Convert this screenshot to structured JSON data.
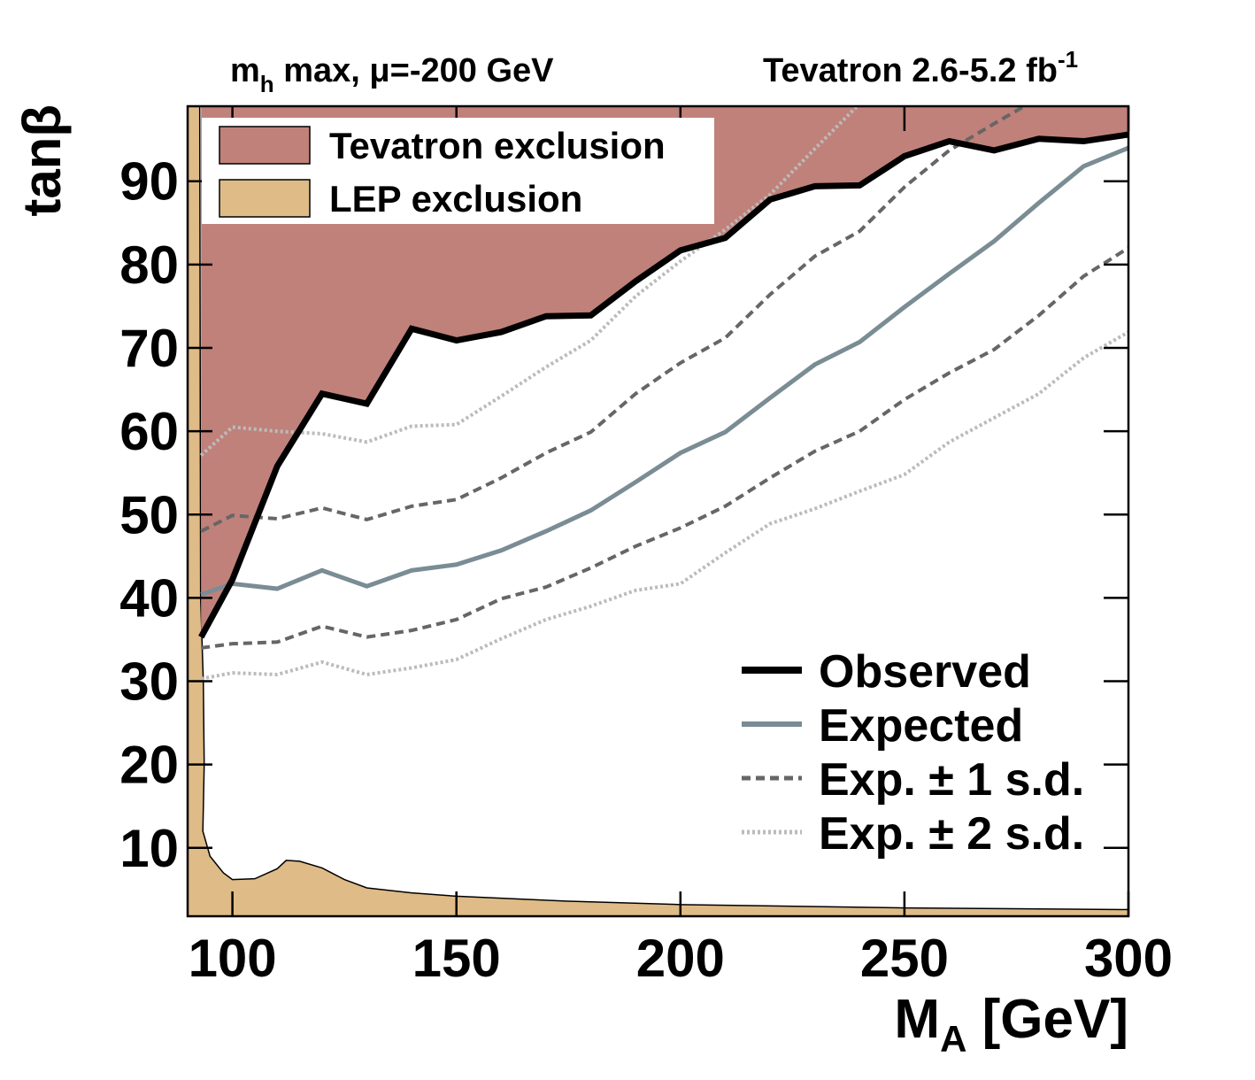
{
  "chart_data": {
    "type": "line",
    "title_left": {
      "base": "m",
      "sub": "h",
      "rest": " max, μ=-200 GeV"
    },
    "title_right": {
      "base": "Tevatron 2.6-5.2 fb",
      "sup": "-1"
    },
    "x_label": {
      "base": "M",
      "sub": "A",
      "rest": " [GeV]"
    },
    "y_label": "tanβ",
    "xlim": [
      90,
      300
    ],
    "ylim": [
      1.8,
      99
    ],
    "xticks": [
      100,
      150,
      200,
      250,
      300
    ],
    "yticks": [
      10,
      20,
      30,
      40,
      50,
      60,
      70,
      80,
      90
    ],
    "x": [
      93,
      100,
      110,
      120,
      130,
      140,
      150,
      160,
      170,
      180,
      190,
      200,
      210,
      220,
      230,
      240,
      250,
      260,
      270,
      280,
      290,
      300
    ],
    "series": [
      {
        "name": "Observed",
        "color": "#000000",
        "style": "solid",
        "width": 7,
        "values": [
          35.3,
          42.2,
          55.8,
          64.5,
          63.3,
          72.3,
          70.9,
          71.9,
          73.8,
          73.9,
          78,
          81.7,
          83.2,
          87.8,
          89.4,
          89.5,
          93,
          94.8,
          93.7,
          95.1,
          94.8,
          95.6
        ]
      },
      {
        "name": "Expected",
        "color": "#7a8c94",
        "style": "solid",
        "width": 5,
        "values": [
          40.4,
          41.7,
          41.1,
          43.3,
          41.4,
          43.3,
          44,
          45.7,
          48,
          50.5,
          53.9,
          57.4,
          59.9,
          64,
          68,
          70.7,
          74.9,
          78.9,
          82.8,
          87.4,
          91.8,
          94
        ]
      },
      {
        "name": "Exp. ± 1 s.d.",
        "color": "#666666",
        "style": "dashed",
        "width": 4,
        "upper": [
          48,
          49.9,
          49.5,
          50.8,
          49.4,
          51,
          51.8,
          54.4,
          57.4,
          59.9,
          64.5,
          68.2,
          71.2,
          76.4,
          81,
          84,
          89.3,
          93.7,
          96.9,
          100,
          null,
          null
        ],
        "lower": [
          34,
          34.5,
          34.7,
          36.6,
          35.3,
          36.1,
          37.4,
          39.9,
          41.3,
          43.6,
          46.2,
          48.4,
          51,
          54.4,
          57.6,
          60,
          63.8,
          67,
          69.8,
          73.9,
          78.6,
          82
        ]
      },
      {
        "name": "Exp. ± 2 s.d.",
        "color": "#bbbbbb",
        "style": "dotted",
        "width": 4,
        "upper": [
          57.1,
          60.5,
          60,
          59.7,
          58.7,
          60.6,
          60.8,
          64.2,
          67.7,
          70.9,
          76.2,
          80.4,
          84.2,
          88.4,
          93.9,
          99.3,
          null,
          null,
          null,
          null,
          null,
          null
        ],
        "lower": [
          30.3,
          31,
          30.8,
          32.3,
          30.8,
          31.6,
          32.6,
          35.1,
          37.4,
          39,
          40.9,
          41.7,
          45.4,
          48.9,
          50.7,
          52.8,
          54.8,
          58.7,
          61.6,
          64.5,
          68.8,
          71.9
        ]
      }
    ],
    "areas": [
      {
        "name": "Tevatron exclusion",
        "color": "#c0817a"
      },
      {
        "name": "LEP exclusion",
        "color": "#dfbb87",
        "x": [
          92.7,
          92.9,
          93.5,
          93.7,
          93.4,
          95,
          98,
          100,
          105,
          110,
          112,
          115,
          120,
          125,
          130,
          140,
          150,
          175,
          200,
          250,
          300
        ],
        "y": [
          99,
          40,
          30,
          20,
          12,
          9,
          7,
          6.2,
          6.3,
          7.5,
          8.5,
          8.4,
          7.6,
          6.2,
          5.2,
          4.6,
          4.2,
          3.6,
          3.2,
          2.8,
          2.6
        ]
      }
    ]
  }
}
